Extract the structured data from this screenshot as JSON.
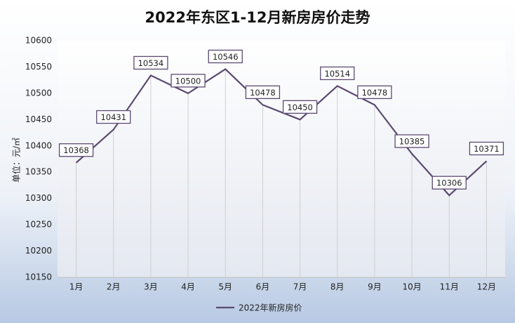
{
  "chart_data": {
    "type": "line",
    "title": "2022年东区1-12月新房房价走势",
    "y_label": "单位：元/㎡",
    "categories": [
      "1月",
      "2月",
      "3月",
      "4月",
      "5月",
      "6月",
      "7月",
      "8月",
      "9月",
      "10月",
      "11月",
      "12月"
    ],
    "series": [
      {
        "name": "2022年新房房价",
        "color": "#5b4a72",
        "values": [
          10368,
          10431,
          10534,
          10500,
          10546,
          10478,
          10450,
          10514,
          10478,
          10385,
          10306,
          10371
        ]
      }
    ],
    "ylim": [
      10150,
      10600
    ],
    "yticks": [
      10150,
      10200,
      10250,
      10300,
      10350,
      10400,
      10450,
      10500,
      10550,
      10600
    ],
    "drop_lines": true,
    "legend": "bottom"
  }
}
